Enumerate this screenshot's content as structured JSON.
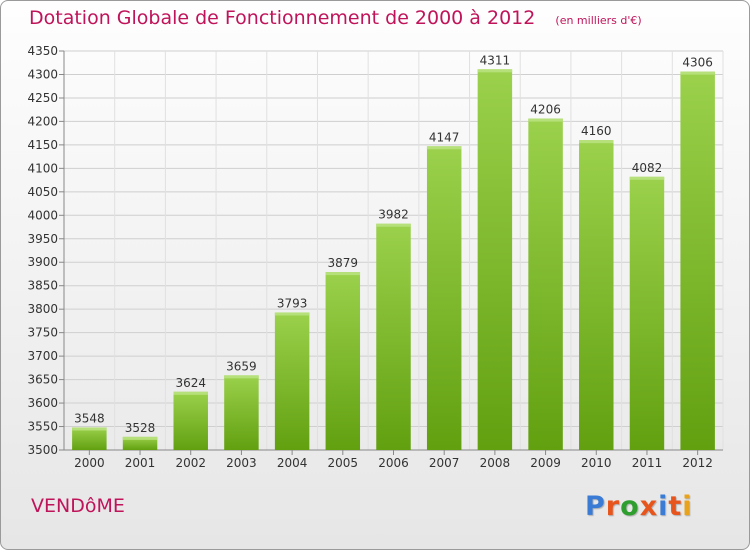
{
  "header": {
    "title": "Dotation Globale de Fonctionnement de 2000 à 2012",
    "unit": "(en milliers d'€)"
  },
  "footer": {
    "city": "VENDôME",
    "brand": "Proxiti",
    "brand_colors": [
      "#3a7bd5",
      "#e8551c",
      "#2e9e2e",
      "#e8551c",
      "#3a7bd5",
      "#e8551c",
      "#e8a21c"
    ]
  },
  "colors": {
    "bar_top": "#9bd14c",
    "bar_bottom": "#62a010",
    "title": "#c0145a"
  },
  "chart_data": {
    "type": "bar",
    "categories": [
      "2000",
      "2001",
      "2002",
      "2003",
      "2004",
      "2005",
      "2006",
      "2007",
      "2008",
      "2009",
      "2010",
      "2011",
      "2012"
    ],
    "values": [
      3548,
      3528,
      3624,
      3659,
      3793,
      3879,
      3982,
      4147,
      4311,
      4206,
      4160,
      4082,
      4306
    ],
    "ylim": [
      3500,
      4350
    ],
    "yticks": [
      3500,
      3550,
      3600,
      3650,
      3700,
      3750,
      3800,
      3850,
      3900,
      3950,
      4000,
      4050,
      4100,
      4150,
      4200,
      4250,
      4300,
      4350
    ],
    "grid": true
  }
}
